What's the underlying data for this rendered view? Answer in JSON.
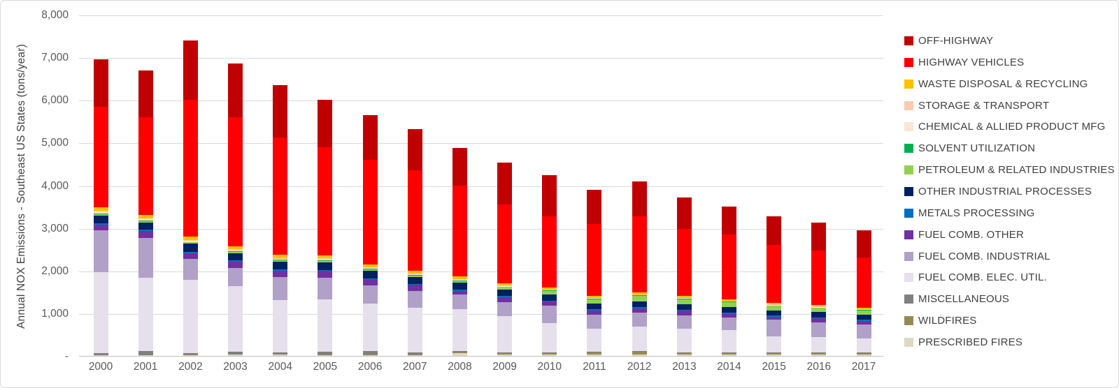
{
  "y_axis_title": "Annual NOX Emissions - Southeast US States  (tons/year)",
  "chart_data": {
    "type": "bar",
    "stacked": true,
    "title": "",
    "xlabel": "",
    "ylabel": "Annual NOX Emissions - Southeast US States  (tons/year)",
    "ylim": [
      0,
      8000
    ],
    "grid": true,
    "legend_position": "right",
    "y_ticks": [
      {
        "value": 8000,
        "label": "8,000"
      },
      {
        "value": 7000,
        "label": "7,000"
      },
      {
        "value": 6000,
        "label": "6,000"
      },
      {
        "value": 5000,
        "label": "5,000"
      },
      {
        "value": 4000,
        "label": "4,000"
      },
      {
        "value": 3000,
        "label": "3,000"
      },
      {
        "value": 2000,
        "label": "2,000"
      },
      {
        "value": 1000,
        "label": "1,000"
      },
      {
        "value": 0,
        "label": "-"
      }
    ],
    "categories": [
      "2000",
      "2001",
      "2002",
      "2003",
      "2004",
      "2005",
      "2006",
      "2007",
      "2008",
      "2009",
      "2010",
      "2011",
      "2012",
      "2013",
      "2014",
      "2015",
      "2016",
      "2017"
    ],
    "series_note": "series listed in legend order = top of stack first; values are tons/year estimated from chart",
    "series": [
      {
        "name": "OFF-HIGHWAY",
        "color": "#C00000",
        "values": [
          1110,
          1110,
          1400,
          1250,
          1220,
          1100,
          1050,
          970,
          870,
          980,
          970,
          790,
          830,
          730,
          650,
          660,
          640,
          640
        ]
      },
      {
        "name": "HIGHWAY VEHICLES",
        "color": "#FF0000",
        "values": [
          2360,
          2290,
          3200,
          3030,
          2760,
          2550,
          2450,
          2350,
          2140,
          1850,
          1660,
          1690,
          1780,
          1570,
          1515,
          1360,
          1280,
          1175
        ]
      },
      {
        "name": "WASTE DISPOSAL & RECYCLING",
        "color": "#FFC000",
        "values": [
          80,
          75,
          75,
          70,
          70,
          65,
          70,
          68,
          65,
          55,
          50,
          45,
          45,
          45,
          40,
          40,
          40,
          35
        ]
      },
      {
        "name": "STORAGE & TRANSPORT",
        "color": "#F8CBAD",
        "values": [
          30,
          25,
          25,
          25,
          25,
          22,
          20,
          18,
          18,
          15,
          15,
          13,
          13,
          13,
          13,
          13,
          13,
          13
        ]
      },
      {
        "name": "CHEMICAL & ALLIED PRODUCT MFG",
        "color": "#FBE5D6",
        "values": [
          25,
          25,
          25,
          25,
          20,
          20,
          18,
          16,
          15,
          14,
          13,
          12,
          12,
          12,
          12,
          12,
          12,
          12
        ]
      },
      {
        "name": "SOLVENT UTILIZATION",
        "color": "#00B050",
        "values": [
          15,
          15,
          15,
          15,
          12,
          12,
          10,
          10,
          10,
          10,
          10,
          10,
          10,
          10,
          10,
          10,
          10,
          10
        ]
      },
      {
        "name": "PETROLEUM & RELATED INDUSTRIES",
        "color": "#92D050",
        "values": [
          35,
          30,
          30,
          30,
          30,
          30,
          32,
          32,
          35,
          66,
          82,
          96,
          130,
          110,
          110,
          110,
          100,
          95
        ]
      },
      {
        "name": "OTHER INDUSTRIAL PROCESSES",
        "color": "#002060",
        "values": [
          190,
          165,
          190,
          165,
          190,
          180,
          175,
          165,
          165,
          150,
          140,
          140,
          140,
          135,
          130,
          120,
          120,
          120
        ]
      },
      {
        "name": "METALS PROCESSING",
        "color": "#0070C0",
        "values": [
          35,
          30,
          30,
          30,
          30,
          30,
          25,
          25,
          25,
          25,
          25,
          25,
          25,
          25,
          35,
          25,
          25,
          35
        ]
      },
      {
        "name": "FUEL COMB. OTHER",
        "color": "#7030A0",
        "values": [
          120,
          165,
          140,
          140,
          150,
          150,
          140,
          140,
          90,
          110,
          95,
          95,
          105,
          110,
          80,
          70,
          90,
          70
        ]
      },
      {
        "name": "FUEL COMB. INDUSTRIAL",
        "color": "#B1A0C7",
        "values": [
          990,
          930,
          490,
          440,
          540,
          520,
          440,
          390,
          345,
          330,
          410,
          330,
          330,
          310,
          300,
          390,
          355,
          330
        ]
      },
      {
        "name": "FUEL COMB. ELEC. UTIL.",
        "color": "#E6E0EC",
        "values": [
          1890,
          1725,
          1710,
          1535,
          1215,
          1221,
          1105,
          1056,
          982,
          855,
          680,
          549,
          565,
          560,
          520,
          375,
          350,
          330
        ]
      },
      {
        "name": "MISCELLANEOUS",
        "color": "#808080",
        "values": [
          55,
          95,
          45,
          60,
          55,
          70,
          85,
          50,
          30,
          20,
          20,
          20,
          20,
          15,
          15,
          15,
          15,
          15
        ]
      },
      {
        "name": "WILDFIRES",
        "color": "#948A54",
        "values": [
          5,
          10,
          10,
          10,
          8,
          10,
          10,
          10,
          20,
          28,
          30,
          35,
          70,
          25,
          30,
          30,
          30,
          30
        ]
      },
      {
        "name": "PRESCRIBED FIRES",
        "color": "#DDD9C3",
        "values": [
          10,
          10,
          15,
          25,
          25,
          20,
          20,
          20,
          60,
          32,
          40,
          40,
          25,
          40,
          40,
          40,
          40,
          40
        ]
      }
    ],
    "totals": [
      6950,
      6700,
      7400,
      6850,
      6350,
      6000,
      5650,
      5320,
      4870,
      4540,
      4240,
      3890,
      4100,
      3710,
      3500,
      3270,
      3120,
      2950
    ]
  }
}
